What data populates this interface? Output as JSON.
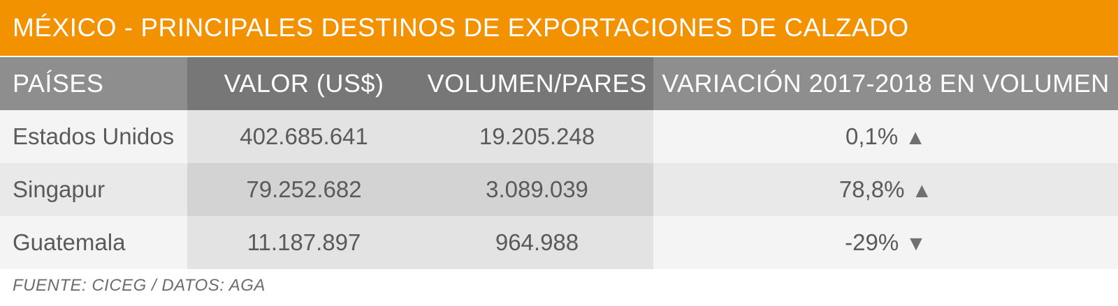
{
  "title": "MÉXICO - PRINCIPALES DESTINOS DE EXPORTACIONES DE CALZADO",
  "source": "FUENTE: CICEG / DATOS: AGA",
  "colors": {
    "title_bar": "#f39200",
    "header_light": "#8f8e8e",
    "header_dark": "#787777"
  },
  "chart_data": {
    "type": "table",
    "title": "MÉXICO - PRINCIPALES DESTINOS DE EXPORTACIONES DE CALZADO",
    "columns": [
      "PAÍSES",
      "VALOR (US$)",
      "VOLUMEN/PARES",
      "VARIACIÓN 2017-2018 EN VOLUMEN"
    ],
    "rows": [
      {
        "pais": "Estados Unidos",
        "valor": "402.685.641",
        "volumen": "19.205.248",
        "variacion": "0,1%",
        "trend": "up",
        "trend_glyph": "▲"
      },
      {
        "pais": "Singapur",
        "valor": "79.252.682",
        "volumen": "3.089.039",
        "variacion": "78,8%",
        "trend": "up",
        "trend_glyph": "▲"
      },
      {
        "pais": "Guatemala",
        "valor": "11.187.897",
        "volumen": "964.988",
        "variacion": "-29%",
        "trend": "down",
        "trend_glyph": "▼"
      }
    ]
  }
}
